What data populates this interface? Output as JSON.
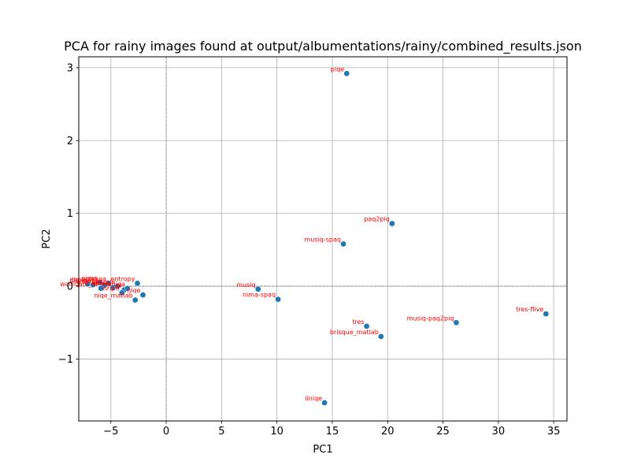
{
  "chart_data": {
    "type": "scatter",
    "title": "PCA for rainy images found at output/albumentations/rainy/combined_results.json",
    "xlabel": "PC1",
    "ylabel": "PC2",
    "xlim": [
      -7.9,
      36.2
    ],
    "ylim": [
      -1.85,
      3.15
    ],
    "xticks": [
      -5,
      0,
      5,
      10,
      15,
      20,
      25,
      30,
      35
    ],
    "yticks": [
      -1,
      0,
      1,
      2,
      3
    ],
    "xtick_labels": [
      "−5",
      "0",
      "5",
      "10",
      "15",
      "20",
      "25",
      "30",
      "35"
    ],
    "ytick_labels": [
      "−1",
      "0",
      "1",
      "2",
      "3"
    ],
    "grid": true,
    "zero_lines": true,
    "marker_color": "#1f77b4",
    "label_color": "#ff0000",
    "points": [
      {
        "label": "piqe",
        "x": 16.3,
        "y": 2.92
      },
      {
        "label": "paq2piq",
        "x": 20.4,
        "y": 0.86
      },
      {
        "label": "musiq-spaq",
        "x": 16.0,
        "y": 0.58
      },
      {
        "label": "musiq",
        "x": 8.3,
        "y": -0.04
      },
      {
        "label": "nima-spaq",
        "x": 10.1,
        "y": -0.18
      },
      {
        "label": "tres",
        "x": 18.1,
        "y": -0.55
      },
      {
        "label": "brisque_matlab",
        "x": 19.4,
        "y": -0.69
      },
      {
        "label": "musiq-paq2piq",
        "x": 26.2,
        "y": -0.5
      },
      {
        "label": "tres-flive",
        "x": 34.3,
        "y": -0.38
      },
      {
        "label": "ilniqe",
        "x": 14.3,
        "y": -1.6
      },
      {
        "label": "niqe_matlab",
        "x": -2.8,
        "y": -0.19
      },
      {
        "label": "niqe",
        "x": -2.1,
        "y": -0.12
      },
      {
        "label": "entropy",
        "x": -2.6,
        "y": 0.04
      },
      {
        "label": "dipiq",
        "x": -7.1,
        "y": 0.03
      },
      {
        "label": "clipiqa",
        "x": -6.6,
        "y": 0.02
      },
      {
        "label": "nima",
        "x": -6.0,
        "y": 0.05
      },
      {
        "label": "hyperiqa",
        "x": -5.6,
        "y": 0.01
      },
      {
        "label": "cnniqa",
        "x": -5.2,
        "y": 0.04
      },
      {
        "label": "dbcnn",
        "x": -4.8,
        "y": -0.02
      },
      {
        "label": "brisque",
        "x": -4.4,
        "y": 0.0
      },
      {
        "label": "wadiqam_nr",
        "x": -5.9,
        "y": -0.03
      },
      {
        "label": "pi",
        "x": -3.8,
        "y": -0.05
      },
      {
        "label": "maniqa",
        "x": -3.5,
        "y": -0.03
      },
      {
        "label": "nrqm",
        "x": -4.0,
        "y": -0.09
      }
    ]
  }
}
